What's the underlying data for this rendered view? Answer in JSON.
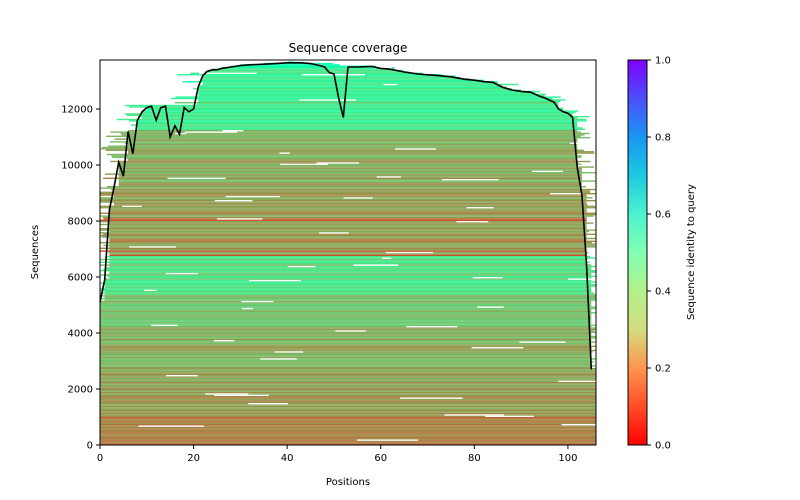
{
  "chart_data": {
    "type": "heatmap",
    "title": "Sequence coverage",
    "xlabel": "Positions",
    "ylabel": "Sequences",
    "xlim": [
      0,
      106
    ],
    "ylim": [
      0,
      13750
    ],
    "x_ticks": [
      0,
      20,
      40,
      60,
      80,
      100
    ],
    "x_tick_labels": [
      "0",
      "20",
      "40",
      "60",
      "80",
      "100"
    ],
    "y_ticks": [
      0,
      2000,
      4000,
      6000,
      8000,
      10000,
      12000
    ],
    "y_tick_labels": [
      "0",
      "2000",
      "4000",
      "6000",
      "8000",
      "10000",
      "12000"
    ],
    "colorbar": {
      "label": "Sequence identity to query",
      "colormap": "rainbow_r",
      "range": [
        0,
        1
      ],
      "ticks": [
        0.0,
        0.2,
        0.4,
        0.6,
        0.8,
        1.0
      ],
      "tick_labels": [
        "0.0",
        "0.2",
        "0.4",
        "0.6",
        "0.8",
        "1.0"
      ]
    },
    "identity_bands": [
      {
        "from": 0,
        "to": 1000,
        "identity": 0.17
      },
      {
        "from": 1000,
        "to": 2600,
        "identity": 0.21
      },
      {
        "from": 2600,
        "to": 4200,
        "identity": 0.24
      },
      {
        "from": 4200,
        "to": 5300,
        "identity": 0.27
      },
      {
        "from": 5300,
        "to": 6700,
        "identity": 0.36
      },
      {
        "from": 6700,
        "to": 9300,
        "identity": 0.21
      },
      {
        "from": 9300,
        "to": 11200,
        "identity": 0.24
      },
      {
        "from": 11200,
        "to": 13400,
        "identity": 0.39
      },
      {
        "from": 13400,
        "to": 13750,
        "identity": 0.5
      }
    ],
    "series": [
      {
        "name": "coverage",
        "color": "#000000",
        "x": [
          0,
          1,
          2,
          3,
          4,
          5,
          6,
          7,
          8,
          9,
          10,
          11,
          12,
          13,
          14,
          15,
          16,
          17,
          18,
          19,
          20,
          21,
          22,
          23,
          24,
          25,
          26,
          28,
          30,
          32,
          35,
          38,
          40,
          43,
          45,
          47,
          48,
          49,
          50,
          51,
          52,
          53,
          55,
          58,
          60,
          62,
          65,
          68,
          70,
          72,
          75,
          78,
          80,
          82,
          84,
          86,
          88,
          90,
          92,
          94,
          95,
          96,
          97,
          98,
          99,
          100,
          101,
          102,
          103,
          104,
          105
        ],
        "y": [
          5100,
          5900,
          8400,
          9200,
          10100,
          9600,
          11200,
          10400,
          11600,
          11900,
          12050,
          12100,
          11600,
          12050,
          12100,
          11000,
          11400,
          11100,
          12050,
          11900,
          12000,
          12800,
          13200,
          13350,
          13400,
          13400,
          13450,
          13500,
          13550,
          13580,
          13600,
          13630,
          13650,
          13650,
          13620,
          13550,
          13500,
          13300,
          13250,
          12400,
          11700,
          13500,
          13500,
          13520,
          13450,
          13420,
          13320,
          13250,
          13220,
          13200,
          13150,
          13060,
          13030,
          12980,
          12950,
          12780,
          12680,
          12630,
          12600,
          12450,
          12400,
          12320,
          12250,
          12000,
          11900,
          11850,
          11700,
          9900,
          8900,
          6400,
          2700
        ]
      }
    ]
  }
}
